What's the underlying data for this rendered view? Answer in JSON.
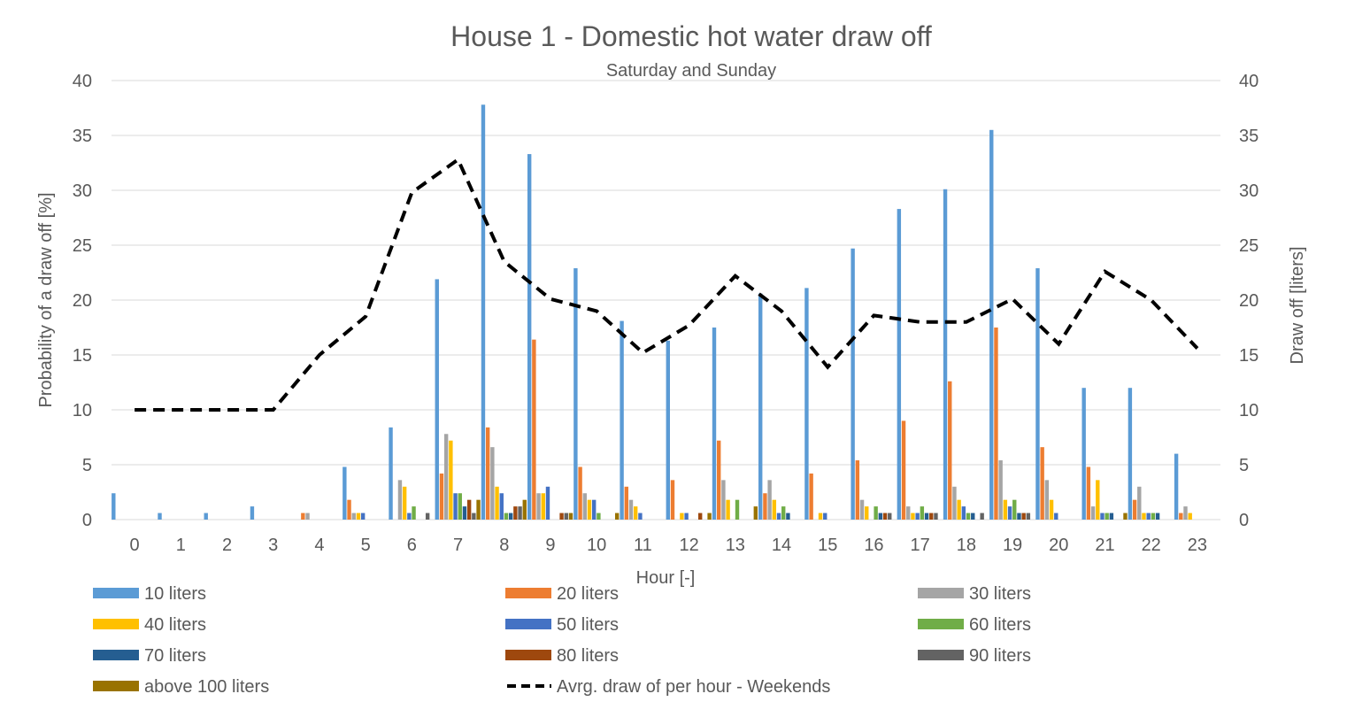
{
  "chart_data": {
    "type": "bar",
    "title": "House 1 - Domestic hot water draw off",
    "subtitle": "Saturday and Sunday",
    "xlabel": "Hour [-]",
    "ylabel": "Probability of a draw off [%]",
    "y2label": "Draw off [liters]",
    "ylim": [
      0,
      40
    ],
    "y2lim": [
      0,
      40
    ],
    "yticks": [
      0,
      5,
      10,
      15,
      20,
      25,
      30,
      35,
      40
    ],
    "grid": "horizontal",
    "legend_position": "bottom",
    "categories": [
      "0",
      "1",
      "2",
      "3",
      "4",
      "5",
      "6",
      "7",
      "8",
      "9",
      "10",
      "11",
      "12",
      "13",
      "14",
      "15",
      "16",
      "17",
      "18",
      "19",
      "20",
      "21",
      "22",
      "23"
    ],
    "series": [
      {
        "name": "10 liters",
        "color": "#5B9BD5",
        "values": [
          2.4,
          0.6,
          0.6,
          1.2,
          0,
          4.8,
          8.4,
          21.9,
          37.8,
          33.3,
          22.9,
          18.1,
          16.3,
          17.5,
          20.6,
          21.1,
          24.7,
          28.3,
          30.1,
          35.5,
          22.9,
          12.0,
          12.0,
          6.0
        ]
      },
      {
        "name": "20 liters",
        "color": "#ED7D31",
        "values": [
          0,
          0,
          0,
          0,
          0.6,
          1.8,
          0,
          4.2,
          8.4,
          16.4,
          4.8,
          3.0,
          3.6,
          7.2,
          2.4,
          4.2,
          5.4,
          9.0,
          12.6,
          17.5,
          6.6,
          4.8,
          1.8,
          0.6
        ]
      },
      {
        "name": "30 liters",
        "color": "#A5A5A5",
        "values": [
          0,
          0,
          0,
          0,
          0.6,
          0.6,
          3.6,
          7.8,
          6.6,
          2.4,
          2.4,
          1.8,
          0,
          3.6,
          3.6,
          0,
          1.8,
          1.2,
          3.0,
          5.4,
          3.6,
          1.2,
          3.0,
          1.2
        ]
      },
      {
        "name": "40 liters",
        "color": "#FFC000",
        "values": [
          0,
          0,
          0,
          0,
          0,
          0.6,
          3.0,
          7.2,
          3.0,
          2.4,
          1.8,
          1.2,
          0.6,
          1.8,
          1.8,
          0.6,
          1.2,
          0.6,
          1.8,
          1.8,
          1.8,
          3.6,
          0.6,
          0.6
        ]
      },
      {
        "name": "50 liters",
        "color": "#4472C4",
        "values": [
          0,
          0,
          0,
          0,
          0,
          0.6,
          0.6,
          2.4,
          2.4,
          3.0,
          1.8,
          0.6,
          0.6,
          0,
          0.6,
          0.6,
          0,
          0.6,
          1.2,
          1.2,
          0.6,
          0.6,
          0.6,
          0
        ]
      },
      {
        "name": "60 liters",
        "color": "#70AD47",
        "values": [
          0,
          0,
          0,
          0,
          0,
          0,
          1.2,
          2.4,
          0.6,
          0,
          0.6,
          0,
          0,
          1.8,
          1.2,
          0,
          1.2,
          1.2,
          0.6,
          1.8,
          0,
          0.6,
          0.6,
          0
        ]
      },
      {
        "name": "70 liters",
        "color": "#255E91",
        "values": [
          0,
          0,
          0,
          0,
          0,
          0,
          0,
          1.2,
          0.6,
          0,
          0,
          0,
          0,
          0,
          0.6,
          0,
          0.6,
          0.6,
          0.6,
          0.6,
          0,
          0.6,
          0.6,
          0
        ]
      },
      {
        "name": "80 liters",
        "color": "#9E480E",
        "values": [
          0,
          0,
          0,
          0,
          0,
          0,
          0,
          1.8,
          1.2,
          0.6,
          0,
          0,
          0.6,
          0,
          0,
          0,
          0.6,
          0.6,
          0,
          0.6,
          0,
          0,
          0,
          0
        ]
      },
      {
        "name": "90 liters",
        "color": "#636363",
        "values": [
          0,
          0,
          0,
          0,
          0,
          0,
          0.6,
          0.6,
          1.2,
          0.6,
          0,
          0,
          0,
          0,
          0,
          0,
          0.6,
          0.6,
          0.6,
          0.6,
          0,
          0,
          0,
          0
        ]
      },
      {
        "name": "above 100 liters",
        "color": "#997300",
        "values": [
          0,
          0,
          0,
          0,
          0,
          0,
          0,
          1.8,
          1.8,
          0.6,
          0.6,
          0,
          0.6,
          1.2,
          0,
          0,
          0,
          0,
          0,
          0,
          0,
          0.6,
          0,
          0
        ]
      }
    ],
    "line_series": {
      "name": "Avrg. draw of per hour - Weekends",
      "color": "#000000",
      "axis": "secondary",
      "style": "dashed",
      "values": [
        10,
        10,
        10,
        10,
        15,
        18.5,
        29.8,
        32.8,
        23.5,
        20.1,
        19.0,
        15.2,
        17.7,
        22.2,
        19.0,
        13.9,
        18.6,
        18.0,
        18.0,
        20.1,
        16.0,
        22.6,
        20.0,
        15.6
      ]
    }
  }
}
